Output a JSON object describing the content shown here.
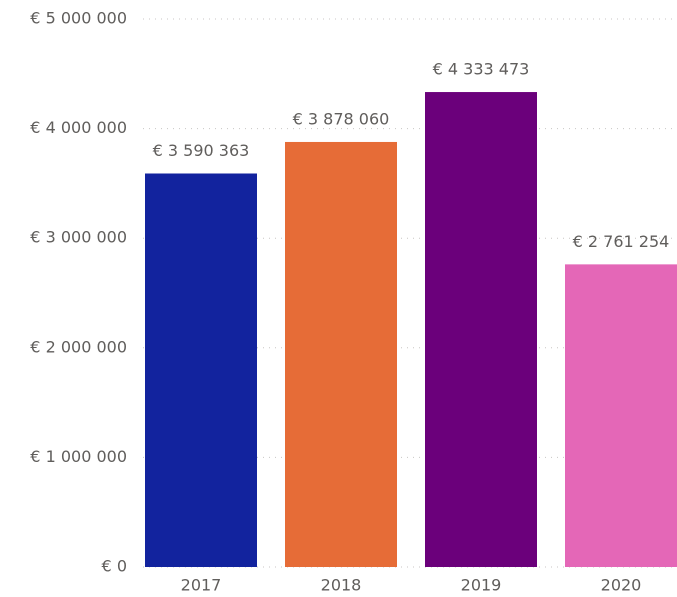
{
  "chart_data": {
    "type": "bar",
    "categories": [
      "2017",
      "2018",
      "2019",
      "2020"
    ],
    "values": [
      3590363,
      3878060,
      4333473,
      2761254
    ],
    "value_labels": [
      "€ 3 590 363",
      "€ 3 878 060",
      "€ 4 333 473",
      "€ 2 761 254"
    ],
    "colors": [
      "#12239e",
      "#e66c37",
      "#6b007b",
      "#e467b7"
    ],
    "ylim": [
      0,
      5000000
    ],
    "yticks": [
      {
        "value": 0,
        "label": "€ 0"
      },
      {
        "value": 1000000,
        "label": "€ 1 000 000"
      },
      {
        "value": 2000000,
        "label": "€ 2 000 000"
      },
      {
        "value": 3000000,
        "label": "€ 3 000 000"
      },
      {
        "value": 4000000,
        "label": "€ 4 000 000"
      },
      {
        "value": 5000000,
        "label": "€ 5 000 000"
      }
    ],
    "grid": true
  }
}
